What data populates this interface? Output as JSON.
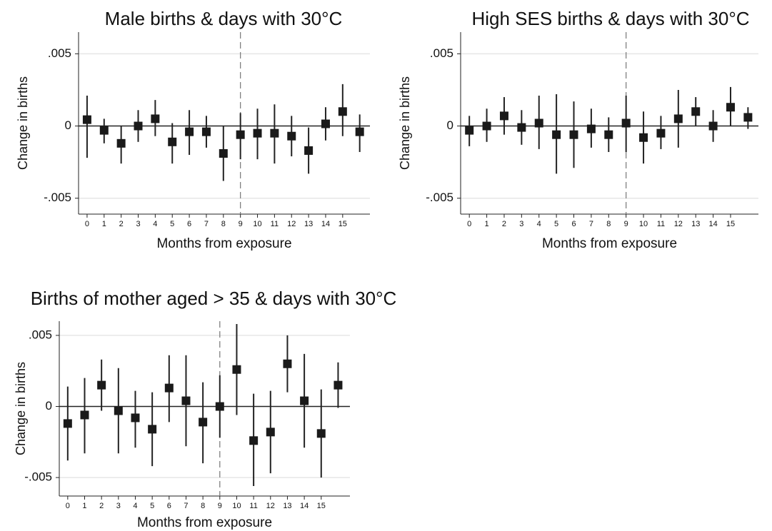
{
  "chart_data": [
    {
      "type": "coefplot",
      "title": "Male births & days with 30°C",
      "x_label": "Months from exposure",
      "y_label": "Change in births",
      "x": [
        0,
        1,
        2,
        3,
        4,
        5,
        6,
        7,
        8,
        9,
        10,
        11,
        12,
        13,
        14,
        15,
        16
      ],
      "values": [
        0.00044,
        -0.0003,
        -0.0012,
        0,
        0.0005,
        -0.0011,
        -0.0004,
        -0.0004,
        -0.0019,
        -0.0006,
        -0.0005,
        -0.0005,
        -0.0007,
        -0.0017,
        0.00015,
        0.001,
        -0.0004
      ],
      "lower": [
        -0.0022,
        -0.0012,
        -0.0026,
        -0.0011,
        -0.0007,
        -0.0026,
        -0.002,
        -0.0015,
        -0.0038,
        -0.0023,
        -0.0023,
        -0.0026,
        -0.0021,
        -0.0033,
        -0.001,
        -0.0007,
        -0.0018
      ],
      "upper": [
        0.0021,
        0.0005,
        0,
        0.0011,
        0.0018,
        0.0002,
        0.0011,
        0.0007,
        0,
        0.0009,
        0.0012,
        0.0015,
        0.0007,
        -0.0001,
        0.0013,
        0.0029,
        0.0008
      ],
      "xlim": [
        -0.5,
        16.6
      ],
      "xticks": [
        0,
        1,
        2,
        3,
        4,
        5,
        6,
        7,
        8,
        9,
        10,
        11,
        12,
        13,
        14,
        15
      ],
      "ylim": [
        -0.0061,
        0.0065
      ],
      "yticks": [
        {
          "value": -0.005,
          "label": "-.005"
        },
        0,
        {
          "value": 0.005,
          "label": ".005"
        }
      ],
      "reference_x": 9,
      "grid": true,
      "color": "#1a1a1a"
    },
    {
      "type": "coefplot",
      "title": "High SES births & days with 30°C",
      "x_label": "Months from exposure",
      "y_label": "Change in births",
      "x": [
        0,
        1,
        2,
        3,
        4,
        5,
        6,
        7,
        8,
        9,
        10,
        11,
        12,
        13,
        14,
        15,
        16
      ],
      "values": [
        -0.0003,
        0,
        0.0007,
        -0.0001,
        0.0002,
        -0.0006,
        -0.0006,
        -0.0002,
        -0.0006,
        0.0002,
        -0.0008,
        -0.0005,
        0.0005,
        0.001,
        0,
        0.0013,
        0.0006
      ],
      "lower": [
        -0.0014,
        -0.0011,
        -0.0006,
        -0.0013,
        -0.0016,
        -0.0033,
        -0.0029,
        -0.0015,
        -0.0018,
        -0.0018,
        -0.0026,
        -0.0016,
        -0.0015,
        0,
        -0.0011,
        0,
        -0.0002
      ],
      "upper": [
        0.0007,
        0.0012,
        0.002,
        0.0011,
        0.0021,
        0.0022,
        0.0017,
        0.0012,
        0.0006,
        0.0021,
        0.001,
        0.0007,
        0.0025,
        0.002,
        0.0011,
        0.0027,
        0.0013
      ],
      "xlim": [
        -0.5,
        16.6
      ],
      "xticks": [
        0,
        1,
        2,
        3,
        4,
        5,
        6,
        7,
        8,
        9,
        10,
        11,
        12,
        13,
        14,
        15
      ],
      "ylim": [
        -0.0061,
        0.0065
      ],
      "yticks": [
        {
          "value": -0.005,
          "label": "-.005"
        },
        0,
        {
          "value": 0.005,
          "label": ".005"
        }
      ],
      "reference_x": 9,
      "grid": true,
      "color": "#1a1a1a"
    },
    {
      "type": "coefplot",
      "title": "Births of mother aged > 35 & days with 30°C",
      "x_label": "Months from exposure",
      "y_label": "Change in births",
      "x": [
        0,
        1,
        2,
        3,
        4,
        5,
        6,
        7,
        8,
        9,
        10,
        11,
        12,
        13,
        14,
        15,
        16
      ],
      "values": [
        -0.0012,
        -0.0006,
        0.0015,
        -0.0003,
        -0.0008,
        -0.0016,
        0.0013,
        0.0004,
        -0.0011,
        0,
        0.0026,
        -0.0024,
        -0.0018,
        0.003,
        0.0004,
        -0.0019,
        0.0015
      ],
      "lower": [
        -0.0038,
        -0.0033,
        -0.0003,
        -0.0033,
        -0.0029,
        -0.0042,
        -0.0011,
        -0.0028,
        -0.004,
        -0.0022,
        -0.0006,
        -0.0056,
        -0.0047,
        0.001,
        -0.0029,
        -0.005,
        -0.0001
      ],
      "upper": [
        0.0014,
        0.002,
        0.0033,
        0.0027,
        0.0011,
        0.001,
        0.0036,
        0.0036,
        0.0017,
        0.0022,
        0.0058,
        0.0009,
        0.0011,
        0.005,
        0.0037,
        0.0012,
        0.0031
      ],
      "xlim": [
        -0.5,
        16.7
      ],
      "xticks": [
        0,
        1,
        2,
        3,
        4,
        5,
        6,
        7,
        8,
        9,
        10,
        11,
        12,
        13,
        14,
        15
      ],
      "ylim": [
        -0.0063,
        0.006
      ],
      "yticks": [
        {
          "value": -0.005,
          "label": "-.005"
        },
        0,
        {
          "value": 0.005,
          "label": ".005"
        }
      ],
      "reference_x": 9,
      "grid": true,
      "color": "#1a1a1a"
    }
  ]
}
